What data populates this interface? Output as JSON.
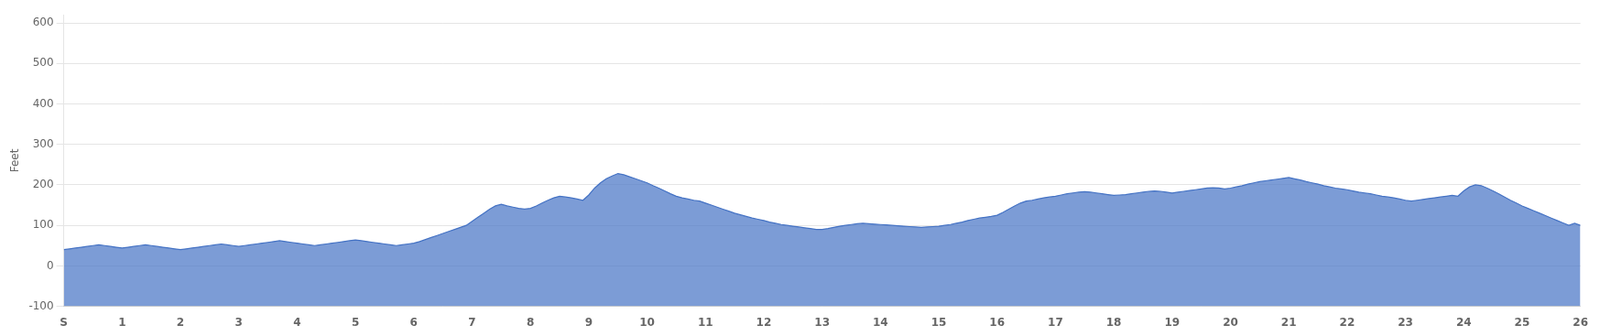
{
  "chart_data": {
    "type": "area",
    "ylabel": "Feet",
    "x": [
      0,
      0.1,
      0.2,
      0.3,
      0.4,
      0.5,
      0.6,
      0.7,
      0.8,
      0.9,
      1,
      1.1,
      1.2,
      1.3,
      1.4,
      1.5,
      1.6,
      1.7,
      1.8,
      1.9,
      2,
      2.1,
      2.2,
      2.3,
      2.4,
      2.5,
      2.6,
      2.7,
      2.8,
      2.9,
      3,
      3.1,
      3.2,
      3.3,
      3.4,
      3.5,
      3.6,
      3.7,
      3.8,
      3.9,
      4,
      4.1,
      4.2,
      4.3,
      4.4,
      4.5,
      4.6,
      4.7,
      4.8,
      4.9,
      5,
      5.1,
      5.2,
      5.3,
      5.4,
      5.5,
      5.6,
      5.7,
      5.8,
      5.9,
      6,
      6.1,
      6.2,
      6.3,
      6.4,
      6.5,
      6.6,
      6.7,
      6.8,
      6.9,
      7,
      7.1,
      7.2,
      7.3,
      7.4,
      7.5,
      7.6,
      7.7,
      7.8,
      7.9,
      8,
      8.1,
      8.2,
      8.3,
      8.4,
      8.5,
      8.6,
      8.7,
      8.8,
      8.9,
      9,
      9.1,
      9.2,
      9.3,
      9.4,
      9.5,
      9.6,
      9.7,
      9.8,
      9.9,
      10,
      10.1,
      10.2,
      10.3,
      10.4,
      10.5,
      10.6,
      10.7,
      10.8,
      10.9,
      11,
      11.1,
      11.2,
      11.3,
      11.4,
      11.5,
      11.6,
      11.7,
      11.8,
      11.9,
      12,
      12.1,
      12.2,
      12.3,
      12.4,
      12.5,
      12.6,
      12.7,
      12.8,
      12.9,
      13,
      13.1,
      13.2,
      13.3,
      13.4,
      13.5,
      13.6,
      13.7,
      13.8,
      13.9,
      14,
      14.1,
      14.2,
      14.3,
      14.4,
      14.5,
      14.6,
      14.7,
      14.8,
      14.9,
      15,
      15.1,
      15.2,
      15.3,
      15.4,
      15.5,
      15.6,
      15.7,
      15.8,
      15.9,
      16,
      16.1,
      16.2,
      16.3,
      16.4,
      16.5,
      16.6,
      16.7,
      16.8,
      16.9,
      17,
      17.1,
      17.2,
      17.3,
      17.4,
      17.5,
      17.6,
      17.7,
      17.8,
      17.9,
      18,
      18.1,
      18.2,
      18.3,
      18.4,
      18.5,
      18.6,
      18.7,
      18.8,
      18.9,
      19,
      19.1,
      19.2,
      19.3,
      19.4,
      19.5,
      19.6,
      19.7,
      19.8,
      19.9,
      20,
      20.1,
      20.2,
      20.3,
      20.4,
      20.5,
      20.6,
      20.7,
      20.8,
      20.9,
      21,
      21.1,
      21.2,
      21.3,
      21.4,
      21.5,
      21.6,
      21.7,
      21.8,
      21.9,
      22,
      22.1,
      22.2,
      22.3,
      22.4,
      22.5,
      22.6,
      22.7,
      22.8,
      22.9,
      23,
      23.1,
      23.2,
      23.3,
      23.4,
      23.5,
      23.6,
      23.7,
      23.8,
      23.9,
      24,
      24.1,
      24.2,
      24.3,
      24.4,
      24.5,
      24.6,
      24.7,
      24.8,
      24.9,
      25,
      25.1,
      25.2,
      25.3,
      25.4,
      25.5,
      25.6,
      25.7,
      25.8,
      25.9,
      26
    ],
    "values": [
      40,
      42,
      44,
      46,
      48,
      50,
      52,
      50,
      48,
      46,
      44,
      46,
      48,
      50,
      52,
      50,
      48,
      46,
      44,
      42,
      40,
      42,
      44,
      46,
      48,
      50,
      52,
      54,
      52,
      50,
      48,
      50,
      52,
      54,
      56,
      58,
      60,
      62,
      60,
      58,
      56,
      54,
      52,
      50,
      52,
      54,
      56,
      58,
      60,
      62,
      64,
      62,
      60,
      58,
      56,
      54,
      52,
      50,
      52,
      54,
      56,
      60,
      65,
      70,
      75,
      80,
      85,
      90,
      95,
      100,
      110,
      120,
      130,
      140,
      148,
      152,
      148,
      145,
      142,
      140,
      142,
      148,
      155,
      162,
      168,
      172,
      170,
      168,
      165,
      162,
      175,
      192,
      205,
      215,
      222,
      228,
      225,
      220,
      215,
      210,
      205,
      198,
      192,
      185,
      178,
      172,
      168,
      165,
      162,
      160,
      155,
      150,
      145,
      140,
      135,
      130,
      126,
      122,
      118,
      115,
      112,
      108,
      105,
      102,
      100,
      98,
      96,
      94,
      92,
      90,
      90,
      92,
      95,
      98,
      100,
      102,
      104,
      105,
      104,
      103,
      102,
      101,
      100,
      99,
      98,
      97,
      96,
      95,
      96,
      97,
      98,
      100,
      102,
      105,
      108,
      112,
      115,
      118,
      120,
      122,
      125,
      132,
      140,
      148,
      155,
      160,
      162,
      165,
      168,
      170,
      172,
      175,
      178,
      180,
      182,
      183,
      182,
      180,
      178,
      176,
      174,
      175,
      176,
      178,
      180,
      182,
      184,
      185,
      184,
      182,
      180,
      182,
      184,
      186,
      188,
      190,
      192,
      193,
      192,
      190,
      192,
      195,
      198,
      202,
      205,
      208,
      210,
      212,
      214,
      216,
      218,
      215,
      212,
      208,
      205,
      202,
      198,
      195,
      192,
      190,
      188,
      185,
      182,
      180,
      178,
      175,
      172,
      170,
      168,
      165,
      162,
      160,
      162,
      164,
      166,
      168,
      170,
      172,
      174,
      172,
      185,
      195,
      200,
      198,
      192,
      185,
      178,
      170,
      162,
      155,
      148,
      142,
      136,
      130,
      124,
      118,
      112,
      106,
      100,
      105,
      100
    ],
    "color": "#4472C4",
    "xlim": [
      0,
      26
    ],
    "xticks": [
      {
        "value": 0,
        "label": "S"
      },
      1,
      2,
      3,
      4,
      5,
      6,
      7,
      8,
      9,
      10,
      11,
      12,
      13,
      14,
      15,
      16,
      17,
      18,
      19,
      20,
      21,
      22,
      23,
      24,
      25,
      26
    ],
    "ylim": [
      -100,
      620
    ],
    "yticks": [
      -100,
      0,
      100,
      200,
      300,
      400,
      500,
      600
    ],
    "grid": "y"
  }
}
